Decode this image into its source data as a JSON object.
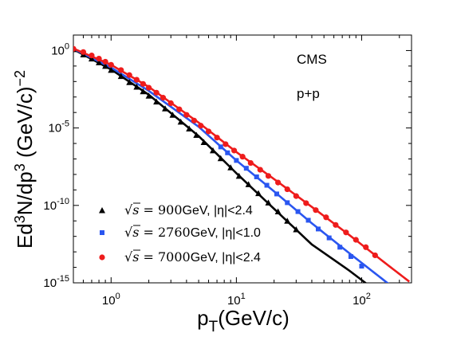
{
  "chart_data": {
    "type": "scatter",
    "xlabel": "p_T(GeV/c)",
    "ylabel": "Ed^3N/dp^3 (GeV/c)^-2",
    "xscale": "log",
    "yscale": "log",
    "xlim": [
      0.5,
      250
    ],
    "ylim": [
      1e-15,
      10
    ],
    "grid": false,
    "legend_placement": "bottom-left",
    "x_ticks": [
      {
        "value": 1,
        "mantissa": "10",
        "exp": "0"
      },
      {
        "value": 10,
        "mantissa": "10",
        "exp": "1"
      },
      {
        "value": 100,
        "mantissa": "10",
        "exp": "2"
      }
    ],
    "y_ticks": [
      {
        "value": 1,
        "mantissa": "10",
        "exp": "0"
      },
      {
        "value": 1e-05,
        "mantissa": "10",
        "exp": "-5"
      },
      {
        "value": 1e-10,
        "mantissa": "10",
        "exp": "-10"
      },
      {
        "value": 1e-15,
        "mantissa": "10",
        "exp": "-15"
      }
    ],
    "annotations": [
      "CMS",
      "p+p"
    ],
    "series": [
      {
        "name": "√s = 900GeV, |η|<2.4",
        "legend_energy": "900",
        "legend_eta": "|η|<2.4",
        "marker": "triangle",
        "color": "#000000",
        "points": [
          [
            0.5,
            1.2
          ],
          [
            0.6,
            0.55
          ],
          [
            0.7,
            0.3
          ],
          [
            0.8,
            0.17
          ],
          [
            0.9,
            0.1
          ],
          [
            1.0,
            0.055
          ],
          [
            1.2,
            0.022
          ],
          [
            1.4,
            0.009
          ],
          [
            1.6,
            0.0045
          ],
          [
            1.8,
            0.0023
          ],
          [
            2.0,
            0.0012
          ],
          [
            2.3,
            0.0005
          ],
          [
            2.7,
            0.00018
          ],
          [
            3.1,
            7e-05
          ],
          [
            3.6,
            2.5e-05
          ],
          [
            4.2,
            9e-06
          ],
          [
            4.8,
            3.5e-06
          ],
          [
            5.5,
            1.2e-06
          ],
          [
            6.5,
            3.5e-07
          ],
          [
            7.5,
            1.1e-07
          ],
          [
            9.0,
            2.8e-08
          ],
          [
            10.5,
            8e-09
          ],
          [
            12.5,
            2.3e-09
          ],
          [
            15.0,
            6e-10
          ],
          [
            18.0,
            1.5e-10
          ],
          [
            21.5,
            4e-11
          ],
          [
            25.5,
            1e-11
          ],
          [
            30.0,
            2.8e-12
          ]
        ],
        "curve": [
          [
            0.5,
            1.2
          ],
          [
            1,
            0.06
          ],
          [
            2,
            0.0014
          ],
          [
            5,
            3e-06
          ],
          [
            10,
            1.2e-08
          ],
          [
            20,
            6e-11
          ],
          [
            40,
            3e-13
          ],
          [
            80,
            6e-15
          ],
          [
            120,
            5e-16
          ]
        ]
      },
      {
        "name": "√s = 2760GeV, |η|<1.0",
        "legend_energy": "2760",
        "legend_eta": "|η|<1.0",
        "marker": "square",
        "color": "#2a56f0",
        "points": [
          [
            7.5,
            6e-07
          ],
          [
            8.5,
            2.5e-07
          ],
          [
            10.0,
            8e-08
          ],
          [
            12.0,
            2.5e-08
          ],
          [
            14.5,
            7e-09
          ],
          [
            17.5,
            2e-09
          ],
          [
            21.0,
            5.5e-10
          ],
          [
            25.5,
            1.5e-10
          ],
          [
            31.0,
            4e-11
          ],
          [
            37.5,
            1.1e-11
          ],
          [
            45.0,
            3e-12
          ],
          [
            55.0,
            8e-13
          ],
          [
            67.0,
            2e-13
          ],
          [
            82.0,
            5e-14
          ],
          [
            100.0,
            1.2e-14
          ]
        ],
        "curve": [
          [
            0.5,
            1.3
          ],
          [
            1,
            0.08
          ],
          [
            2,
            0.0025
          ],
          [
            5,
            1.2e-05
          ],
          [
            10,
            8e-08
          ],
          [
            20,
            8e-10
          ],
          [
            40,
            7e-12
          ],
          [
            80,
            8e-14
          ],
          [
            160,
            1e-15
          ],
          [
            190,
            4e-16
          ]
        ]
      },
      {
        "name": "√s = 7000GeV, |η|<2.4",
        "legend_energy": "7000",
        "legend_eta": "|η|<2.4",
        "marker": "circle",
        "color": "#ee1c1c",
        "points": [
          [
            0.5,
            1.3
          ],
          [
            0.6,
            0.8
          ],
          [
            0.7,
            0.48
          ],
          [
            0.8,
            0.3
          ],
          [
            0.9,
            0.19
          ],
          [
            1.0,
            0.12
          ],
          [
            1.2,
            0.055
          ],
          [
            1.4,
            0.026
          ],
          [
            1.6,
            0.013
          ],
          [
            1.8,
            0.007
          ],
          [
            2.0,
            0.004
          ],
          [
            2.3,
            0.0019
          ],
          [
            2.6,
            0.0009
          ],
          [
            3.0,
            0.0004
          ],
          [
            3.5,
            0.00016
          ],
          [
            4.0,
            7e-05
          ],
          [
            4.6,
            3e-05
          ],
          [
            5.2,
            1.4e-05
          ],
          [
            6.0,
            6e-06
          ],
          [
            7.0,
            2.4e-06
          ],
          [
            8.2,
            9e-07
          ],
          [
            9.6,
            3.5e-07
          ],
          [
            11.2,
            1.4e-07
          ],
          [
            13.0,
            5.5e-08
          ],
          [
            15.5,
            2e-08
          ],
          [
            18.0,
            8e-09
          ],
          [
            21.5,
            3e-09
          ],
          [
            25.5,
            1.1e-09
          ],
          [
            30.0,
            4e-10
          ],
          [
            36.0,
            1.4e-10
          ],
          [
            43.0,
            5e-11
          ],
          [
            52.0,
            1.7e-11
          ],
          [
            62.0,
            5.5e-12
          ],
          [
            75.0,
            1.8e-12
          ],
          [
            90.0,
            6e-13
          ],
          [
            108.0,
            2e-13
          ],
          [
            128.0,
            6e-14
          ]
        ],
        "curve": [
          [
            0.5,
            1.35
          ],
          [
            1,
            0.12
          ],
          [
            2,
            0.0045
          ],
          [
            5,
            2.2e-05
          ],
          [
            10,
            2.8e-07
          ],
          [
            20,
            5e-09
          ],
          [
            40,
            8e-11
          ],
          [
            80,
            1.2e-12
          ],
          [
            160,
            1.5e-14
          ],
          [
            240,
            1.2e-15
          ]
        ]
      }
    ]
  }
}
